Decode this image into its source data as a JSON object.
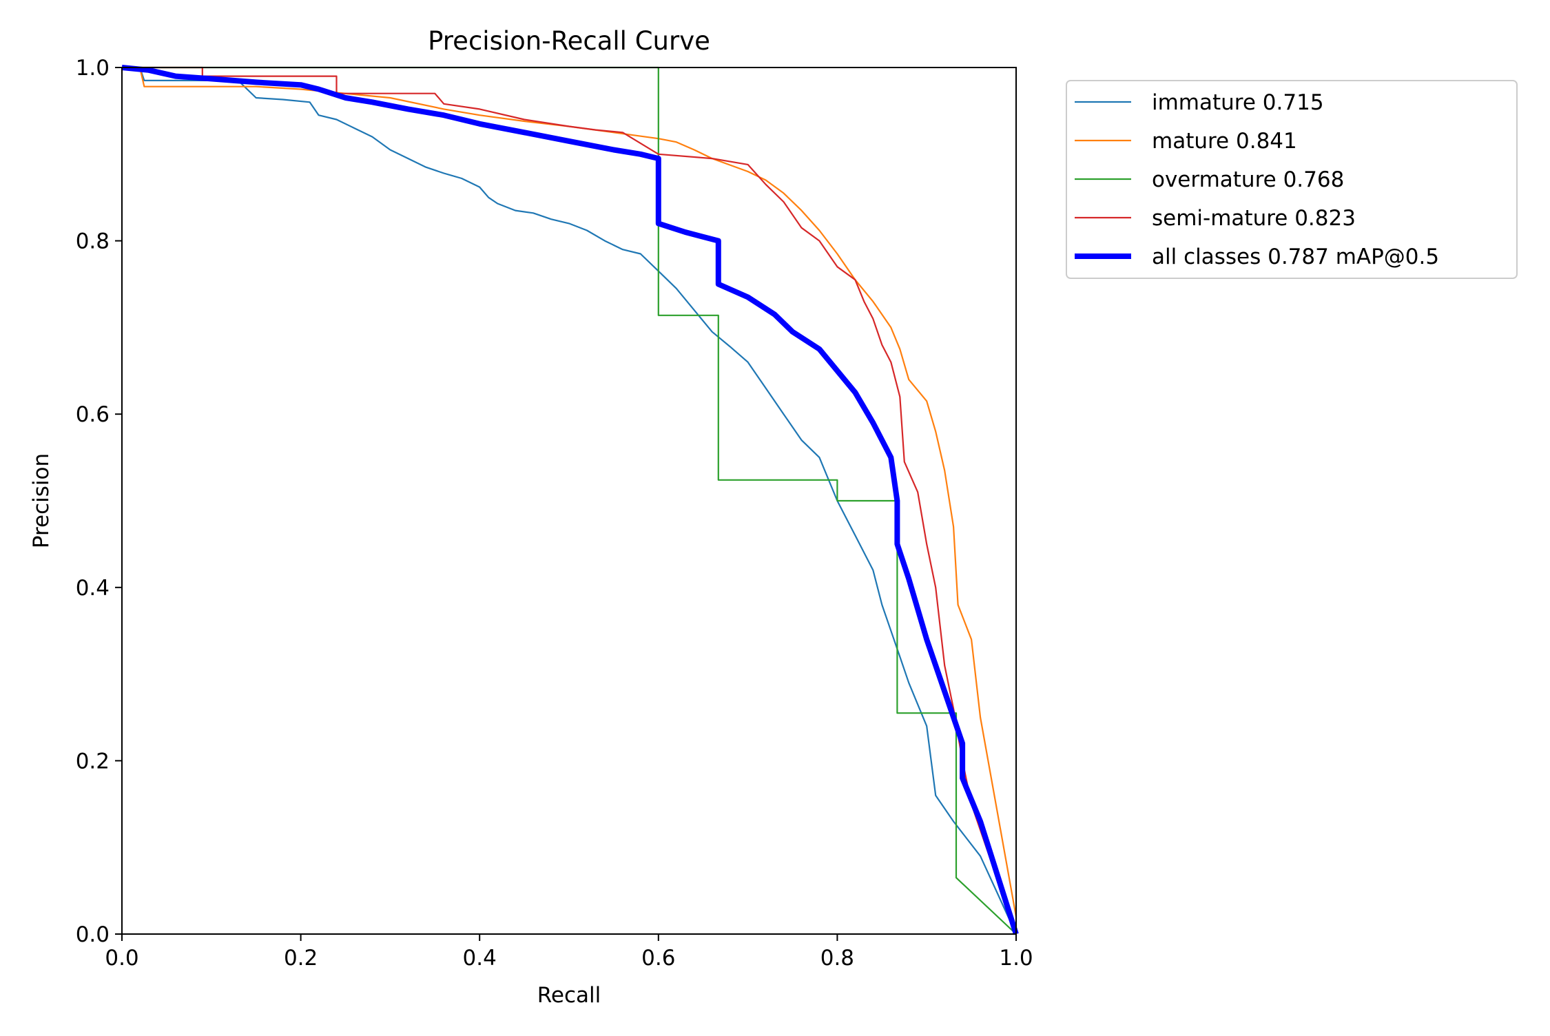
{
  "chart_data": {
    "type": "line",
    "title": "Precision-Recall Curve",
    "xlabel": "Recall",
    "ylabel": "Precision",
    "xlim": [
      0,
      1
    ],
    "ylim": [
      0,
      1
    ],
    "xticks": [
      "0.0",
      "0.2",
      "0.4",
      "0.6",
      "0.8",
      "1.0"
    ],
    "yticks": [
      "0.0",
      "0.2",
      "0.4",
      "0.6",
      "0.8",
      "1.0"
    ],
    "grid": false,
    "legend_position": "outside-upper-right",
    "series": [
      {
        "name": "immature 0.715",
        "color": "#1f77b4",
        "points": [
          [
            0,
            1.0
          ],
          [
            0.02,
            1.0
          ],
          [
            0.025,
            0.985
          ],
          [
            0.06,
            0.985
          ],
          [
            0.1,
            0.985
          ],
          [
            0.13,
            0.985
          ],
          [
            0.15,
            0.965
          ],
          [
            0.18,
            0.963
          ],
          [
            0.21,
            0.96
          ],
          [
            0.22,
            0.945
          ],
          [
            0.24,
            0.94
          ],
          [
            0.26,
            0.93
          ],
          [
            0.28,
            0.92
          ],
          [
            0.3,
            0.905
          ],
          [
            0.32,
            0.895
          ],
          [
            0.34,
            0.885
          ],
          [
            0.36,
            0.878
          ],
          [
            0.38,
            0.872
          ],
          [
            0.4,
            0.862
          ],
          [
            0.41,
            0.85
          ],
          [
            0.42,
            0.843
          ],
          [
            0.44,
            0.835
          ],
          [
            0.46,
            0.832
          ],
          [
            0.48,
            0.825
          ],
          [
            0.5,
            0.82
          ],
          [
            0.52,
            0.812
          ],
          [
            0.54,
            0.8
          ],
          [
            0.56,
            0.79
          ],
          [
            0.58,
            0.785
          ],
          [
            0.6,
            0.765
          ],
          [
            0.62,
            0.745
          ],
          [
            0.64,
            0.72
          ],
          [
            0.66,
            0.695
          ],
          [
            0.68,
            0.678
          ],
          [
            0.7,
            0.66
          ],
          [
            0.72,
            0.63
          ],
          [
            0.74,
            0.6
          ],
          [
            0.76,
            0.57
          ],
          [
            0.78,
            0.55
          ],
          [
            0.8,
            0.5
          ],
          [
            0.82,
            0.46
          ],
          [
            0.84,
            0.42
          ],
          [
            0.85,
            0.38
          ],
          [
            0.86,
            0.35
          ],
          [
            0.87,
            0.32
          ],
          [
            0.88,
            0.29
          ],
          [
            0.9,
            0.24
          ],
          [
            0.91,
            0.16
          ],
          [
            0.93,
            0.13
          ],
          [
            0.96,
            0.09
          ],
          [
            1.0,
            0.0
          ]
        ]
      },
      {
        "name": "mature 0.841",
        "color": "#ff7f0e",
        "points": [
          [
            0,
            1.0
          ],
          [
            0.02,
            1.0
          ],
          [
            0.025,
            0.978
          ],
          [
            0.1,
            0.978
          ],
          [
            0.15,
            0.978
          ],
          [
            0.2,
            0.975
          ],
          [
            0.3,
            0.965
          ],
          [
            0.36,
            0.952
          ],
          [
            0.4,
            0.945
          ],
          [
            0.45,
            0.938
          ],
          [
            0.5,
            0.932
          ],
          [
            0.55,
            0.925
          ],
          [
            0.6,
            0.918
          ],
          [
            0.62,
            0.914
          ],
          [
            0.64,
            0.905
          ],
          [
            0.66,
            0.895
          ],
          [
            0.7,
            0.88
          ],
          [
            0.72,
            0.87
          ],
          [
            0.74,
            0.855
          ],
          [
            0.76,
            0.835
          ],
          [
            0.78,
            0.812
          ],
          [
            0.8,
            0.785
          ],
          [
            0.82,
            0.755
          ],
          [
            0.84,
            0.73
          ],
          [
            0.86,
            0.7
          ],
          [
            0.87,
            0.675
          ],
          [
            0.88,
            0.64
          ],
          [
            0.9,
            0.615
          ],
          [
            0.91,
            0.58
          ],
          [
            0.92,
            0.535
          ],
          [
            0.93,
            0.47
          ],
          [
            0.935,
            0.38
          ],
          [
            0.95,
            0.34
          ],
          [
            0.96,
            0.25
          ],
          [
            1.0,
            0.02
          ]
        ]
      },
      {
        "name": "overmature 0.768",
        "color": "#2ca02c",
        "points": [
          [
            0,
            1.0
          ],
          [
            0.6,
            1.0
          ],
          [
            0.6,
            0.714
          ],
          [
            0.667,
            0.714
          ],
          [
            0.667,
            0.524
          ],
          [
            0.8,
            0.524
          ],
          [
            0.8,
            0.5
          ],
          [
            0.867,
            0.5
          ],
          [
            0.867,
            0.255
          ],
          [
            0.933,
            0.255
          ],
          [
            0.933,
            0.065
          ],
          [
            1.0,
            0.0
          ]
        ]
      },
      {
        "name": "semi-mature 0.823",
        "color": "#d62728",
        "points": [
          [
            0,
            1.0
          ],
          [
            0.09,
            1.0
          ],
          [
            0.09,
            0.99
          ],
          [
            0.24,
            0.99
          ],
          [
            0.24,
            0.97
          ],
          [
            0.35,
            0.97
          ],
          [
            0.36,
            0.958
          ],
          [
            0.4,
            0.952
          ],
          [
            0.45,
            0.94
          ],
          [
            0.5,
            0.932
          ],
          [
            0.53,
            0.928
          ],
          [
            0.56,
            0.925
          ],
          [
            0.6,
            0.9
          ],
          [
            0.66,
            0.895
          ],
          [
            0.7,
            0.888
          ],
          [
            0.72,
            0.865
          ],
          [
            0.74,
            0.845
          ],
          [
            0.76,
            0.815
          ],
          [
            0.78,
            0.8
          ],
          [
            0.8,
            0.77
          ],
          [
            0.82,
            0.755
          ],
          [
            0.83,
            0.73
          ],
          [
            0.84,
            0.71
          ],
          [
            0.85,
            0.68
          ],
          [
            0.86,
            0.66
          ],
          [
            0.87,
            0.62
          ],
          [
            0.875,
            0.545
          ],
          [
            0.89,
            0.51
          ],
          [
            0.9,
            0.45
          ],
          [
            0.91,
            0.4
          ],
          [
            0.92,
            0.31
          ],
          [
            0.93,
            0.26
          ],
          [
            0.94,
            0.2
          ],
          [
            0.95,
            0.15
          ],
          [
            1.0,
            0.0
          ]
        ]
      },
      {
        "name": "all classes 0.787 mAP@0.5",
        "color": "#0000ff",
        "bold": true,
        "points": [
          [
            0,
            1.0
          ],
          [
            0.03,
            0.997
          ],
          [
            0.06,
            0.99
          ],
          [
            0.1,
            0.987
          ],
          [
            0.15,
            0.983
          ],
          [
            0.2,
            0.98
          ],
          [
            0.22,
            0.975
          ],
          [
            0.25,
            0.965
          ],
          [
            0.28,
            0.96
          ],
          [
            0.32,
            0.952
          ],
          [
            0.36,
            0.945
          ],
          [
            0.4,
            0.935
          ],
          [
            0.45,
            0.925
          ],
          [
            0.5,
            0.915
          ],
          [
            0.55,
            0.905
          ],
          [
            0.58,
            0.9
          ],
          [
            0.6,
            0.895
          ],
          [
            0.6,
            0.82
          ],
          [
            0.63,
            0.81
          ],
          [
            0.667,
            0.8
          ],
          [
            0.667,
            0.75
          ],
          [
            0.7,
            0.735
          ],
          [
            0.73,
            0.715
          ],
          [
            0.75,
            0.695
          ],
          [
            0.78,
            0.675
          ],
          [
            0.8,
            0.65
          ],
          [
            0.82,
            0.625
          ],
          [
            0.84,
            0.59
          ],
          [
            0.86,
            0.55
          ],
          [
            0.867,
            0.5
          ],
          [
            0.867,
            0.45
          ],
          [
            0.88,
            0.41
          ],
          [
            0.9,
            0.34
          ],
          [
            0.92,
            0.28
          ],
          [
            0.94,
            0.22
          ],
          [
            0.94,
            0.18
          ],
          [
            0.96,
            0.13
          ],
          [
            1.0,
            0.0
          ]
        ]
      }
    ]
  }
}
